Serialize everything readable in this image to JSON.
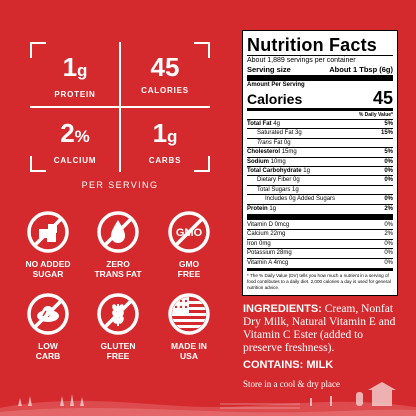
{
  "stats": {
    "protein": {
      "value": "1",
      "unit": "g",
      "label": "PROTEIN"
    },
    "calories": {
      "value": "45",
      "label": "CALORIES"
    },
    "calcium": {
      "value": "2",
      "unit": "%",
      "label": "CALCIUM"
    },
    "carbs": {
      "value": "1",
      "unit": "g",
      "label": "CARBS"
    },
    "per_serving": "PER SERVING"
  },
  "badges": [
    {
      "icon": "no-sugar-icon",
      "line1": "NO ADDED",
      "line2": "SUGAR"
    },
    {
      "icon": "zero-trans-fat-icon",
      "line1": "ZERO",
      "line2": "TRANS FAT"
    },
    {
      "icon": "gmo-free-icon",
      "line1": "GMO",
      "line2": "FREE"
    },
    {
      "icon": "low-carb-icon",
      "line1": "LOW",
      "line2": "CARB"
    },
    {
      "icon": "gluten-free-icon",
      "line1": "GLUTEN",
      "line2": "FREE"
    },
    {
      "icon": "usa-flag-icon",
      "line1": "MADE IN",
      "line2": "USA"
    }
  ],
  "nutrition": {
    "title": "Nutrition Facts",
    "servings": "About 1,889 servings per container",
    "serving_size_label": "Serving size",
    "serving_size_value": "About 1 Tbsp (6g)",
    "amount_per_serving": "Amount Per Serving",
    "calories_label": "Calories",
    "calories_value": "45",
    "dv_header": "% Daily Value*",
    "rows": [
      {
        "label": "Total Fat",
        "amount": "4g",
        "pct": "5%"
      },
      {
        "label": "Saturated Fat",
        "amount": "3g",
        "pct": "15%"
      },
      {
        "label": "Trans",
        "amount": "Fat 0g",
        "pct": ""
      },
      {
        "label": "Cholesterol",
        "amount": "15mg",
        "pct": "5%"
      },
      {
        "label": "Sodium",
        "amount": "10mg",
        "pct": "0%"
      },
      {
        "label": "Total Carbohydrate",
        "amount": "1g",
        "pct": "0%"
      },
      {
        "label": "Dietary Fiber",
        "amount": "0g",
        "pct": "0%"
      },
      {
        "label": "Total Sugars",
        "amount": "1g",
        "pct": ""
      },
      {
        "label": "Includes 0g Added Sugars",
        "amount": "",
        "pct": "0%"
      },
      {
        "label": "Protein",
        "amount": "1g",
        "pct": "2%"
      }
    ],
    "vitamins": [
      {
        "label": "Vitamin D 0mcg",
        "pct": "0%"
      },
      {
        "label": "Calcium 22mg",
        "pct": "2%"
      },
      {
        "label": "Iron 0mg",
        "pct": "0%"
      },
      {
        "label": "Potassium 28mg",
        "pct": "0%"
      },
      {
        "label": "Vitamin A 4mcg",
        "pct": "0%"
      }
    ],
    "footnote": "* The % Daily Value (DV) tells you how much a nutrient in a serving of food contributes to a daily diet. 2,000 calories a day is used for general nutrition advice."
  },
  "ingredients": {
    "label": "INGREDIENTS:",
    "text": "Cream, Nonfat Dry Milk, Natural Vitamin E and Vitamin C Ester (added to preserve freshness)."
  },
  "contains": "CONTAINS: MILK",
  "store": "Store in a cool & dry place",
  "colors": {
    "background": "#d42a2e",
    "label": "#ffffff"
  }
}
